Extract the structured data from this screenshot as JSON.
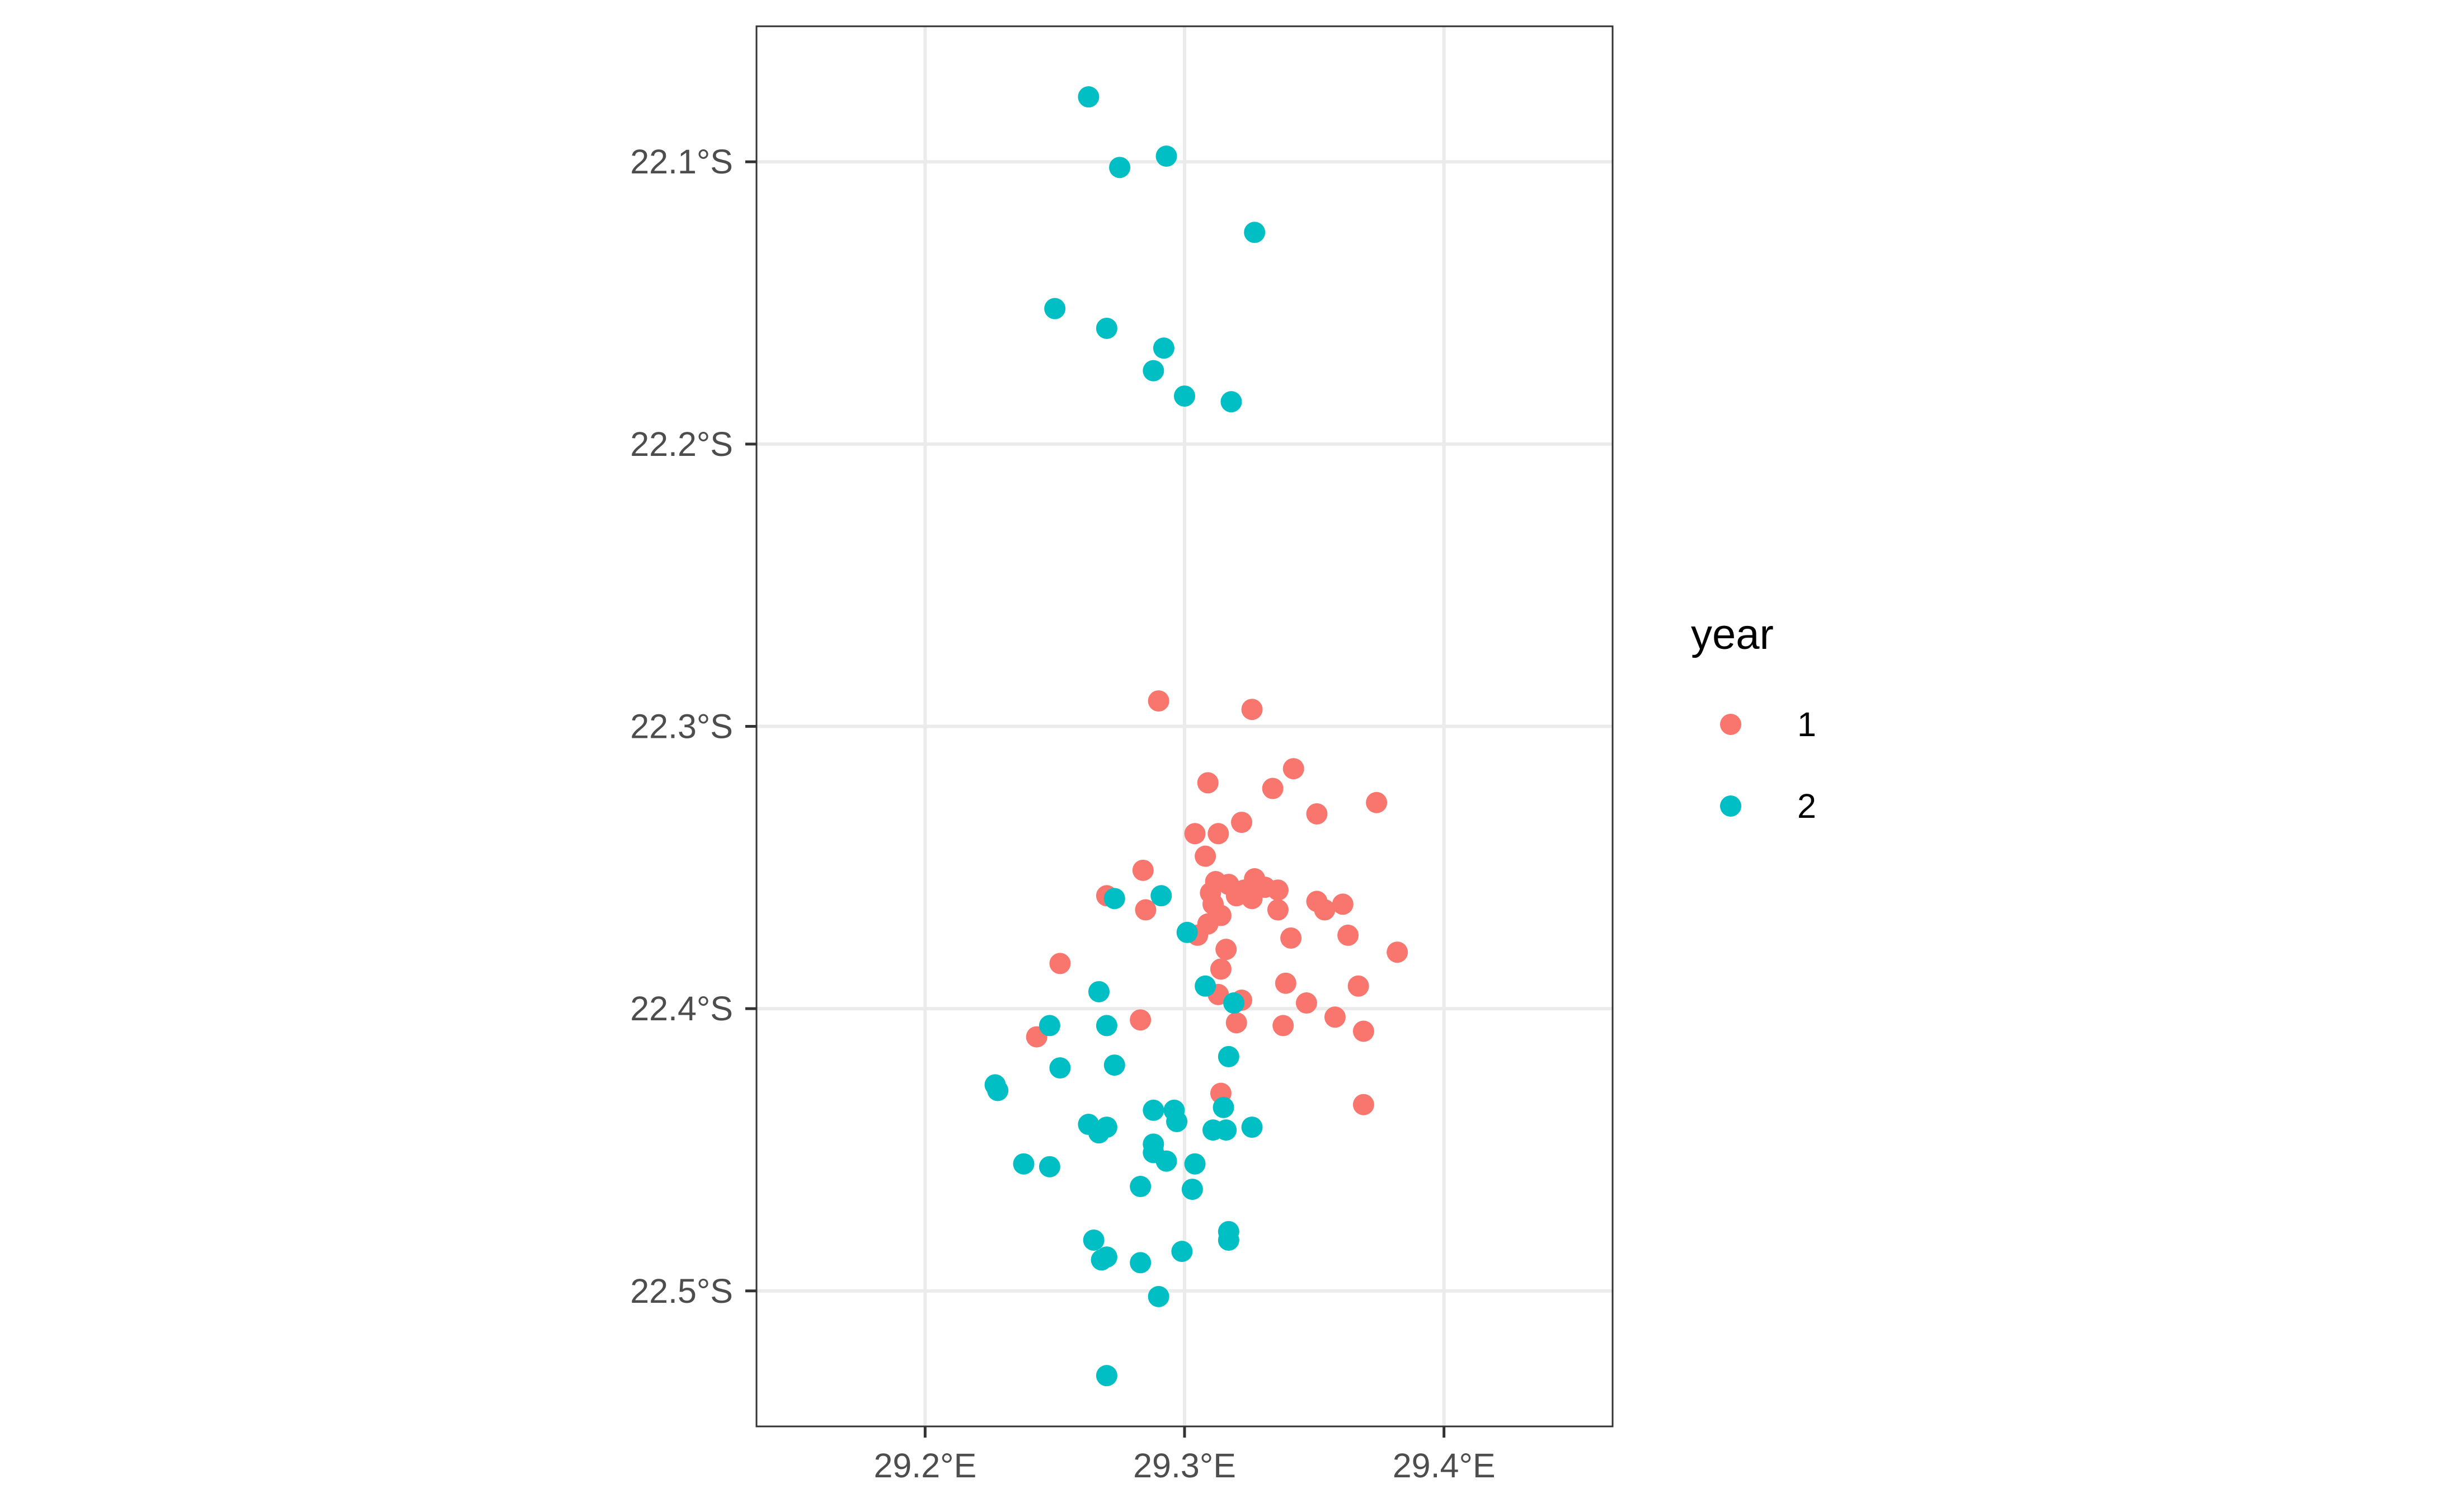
{
  "chart_data": {
    "type": "scatter",
    "title": "",
    "xlabel": "",
    "ylabel": "",
    "xlim": [
      29.135,
      29.465
    ],
    "ylim": [
      -22.548,
      -22.052
    ],
    "x_ticks": [
      29.2,
      29.3,
      29.4
    ],
    "x_tick_labels": [
      "29.2°E",
      "29.3°E",
      "29.4°E"
    ],
    "y_ticks": [
      -22.1,
      -22.2,
      -22.3,
      -22.4,
      -22.5
    ],
    "y_tick_labels": [
      "22.1°S",
      "22.2°S",
      "22.3°S",
      "22.4°S",
      "22.5°S"
    ],
    "grid": true,
    "legend": {
      "title": "year",
      "position": "right"
    },
    "series": [
      {
        "name": "1",
        "color": "#F8766D",
        "points": [
          [
            29.29,
            -22.291
          ],
          [
            29.326,
            -22.294
          ],
          [
            29.342,
            -22.315
          ],
          [
            29.309,
            -22.32
          ],
          [
            29.334,
            -22.322
          ],
          [
            29.374,
            -22.327
          ],
          [
            29.351,
            -22.331
          ],
          [
            29.322,
            -22.334
          ],
          [
            29.304,
            -22.338
          ],
          [
            29.313,
            -22.338
          ],
          [
            29.308,
            -22.346
          ],
          [
            29.284,
            -22.351
          ],
          [
            29.327,
            -22.354
          ],
          [
            29.312,
            -22.355
          ],
          [
            29.317,
            -22.356
          ],
          [
            29.323,
            -22.358
          ],
          [
            29.331,
            -22.357
          ],
          [
            29.336,
            -22.358
          ],
          [
            29.31,
            -22.359
          ],
          [
            29.32,
            -22.36
          ],
          [
            29.326,
            -22.361
          ],
          [
            29.311,
            -22.363
          ],
          [
            29.351,
            -22.362
          ],
          [
            29.361,
            -22.363
          ],
          [
            29.27,
            -22.36
          ],
          [
            29.285,
            -22.365
          ],
          [
            29.336,
            -22.365
          ],
          [
            29.354,
            -22.365
          ],
          [
            29.314,
            -22.367
          ],
          [
            29.309,
            -22.37
          ],
          [
            29.305,
            -22.374
          ],
          [
            29.363,
            -22.374
          ],
          [
            29.341,
            -22.375
          ],
          [
            29.316,
            -22.379
          ],
          [
            29.382,
            -22.38
          ],
          [
            29.252,
            -22.384
          ],
          [
            29.314,
            -22.386
          ],
          [
            29.339,
            -22.391
          ],
          [
            29.367,
            -22.392
          ],
          [
            29.313,
            -22.395
          ],
          [
            29.322,
            -22.397
          ],
          [
            29.347,
            -22.398
          ],
          [
            29.283,
            -22.404
          ],
          [
            29.358,
            -22.403
          ],
          [
            29.32,
            -22.405
          ],
          [
            29.338,
            -22.406
          ],
          [
            29.369,
            -22.408
          ],
          [
            29.243,
            -22.41
          ],
          [
            29.314,
            -22.43
          ],
          [
            29.369,
            -22.434
          ]
        ]
      },
      {
        "name": "2",
        "color": "#00BFC4",
        "points": [
          [
            29.263,
            -22.077
          ],
          [
            29.293,
            -22.098
          ],
          [
            29.275,
            -22.102
          ],
          [
            29.327,
            -22.125
          ],
          [
            29.25,
            -22.152
          ],
          [
            29.27,
            -22.159
          ],
          [
            29.292,
            -22.166
          ],
          [
            29.288,
            -22.174
          ],
          [
            29.3,
            -22.183
          ],
          [
            29.318,
            -22.185
          ],
          [
            29.273,
            -22.361
          ],
          [
            29.291,
            -22.36
          ],
          [
            29.301,
            -22.373
          ],
          [
            29.308,
            -22.392
          ],
          [
            29.267,
            -22.394
          ],
          [
            29.319,
            -22.398
          ],
          [
            29.248,
            -22.406
          ],
          [
            29.27,
            -22.406
          ],
          [
            29.317,
            -22.417
          ],
          [
            29.252,
            -22.421
          ],
          [
            29.273,
            -22.42
          ],
          [
            29.227,
            -22.427
          ],
          [
            29.228,
            -22.429
          ],
          [
            29.315,
            -22.435
          ],
          [
            29.288,
            -22.436
          ],
          [
            29.296,
            -22.436
          ],
          [
            29.297,
            -22.44
          ],
          [
            29.263,
            -22.441
          ],
          [
            29.27,
            -22.442
          ],
          [
            29.311,
            -22.443
          ],
          [
            29.316,
            -22.443
          ],
          [
            29.326,
            -22.442
          ],
          [
            29.267,
            -22.444
          ],
          [
            29.288,
            -22.448
          ],
          [
            29.288,
            -22.451
          ],
          [
            29.293,
            -22.454
          ],
          [
            29.238,
            -22.455
          ],
          [
            29.248,
            -22.456
          ],
          [
            29.304,
            -22.455
          ],
          [
            29.283,
            -22.463
          ],
          [
            29.303,
            -22.464
          ],
          [
            29.317,
            -22.479
          ],
          [
            29.317,
            -22.482
          ],
          [
            29.265,
            -22.482
          ],
          [
            29.299,
            -22.486
          ],
          [
            29.27,
            -22.488
          ],
          [
            29.268,
            -22.489
          ],
          [
            29.283,
            -22.49
          ],
          [
            29.29,
            -22.502
          ],
          [
            29.27,
            -22.53
          ]
        ]
      }
    ]
  }
}
